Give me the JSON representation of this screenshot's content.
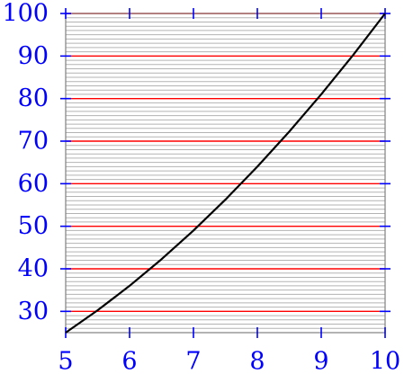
{
  "chart_data": {
    "type": "line",
    "title": "",
    "xlabel": "",
    "ylabel": "",
    "xlim": [
      5,
      10
    ],
    "ylim": [
      25,
      100
    ],
    "x_ticks": [
      5,
      6,
      7,
      8,
      9,
      10
    ],
    "y_ticks": [
      30,
      40,
      50,
      60,
      70,
      80,
      90,
      100
    ],
    "grid": {
      "major_y_step": 10,
      "minor_y_step": 1,
      "major_color": "#ff0000",
      "minor_color": "#b3b3b3"
    },
    "colors": {
      "tick_label": "#0000ff",
      "axis": "#808080",
      "curve": "#000000"
    },
    "series": [
      {
        "x": [
          5,
          5.5,
          6,
          6.5,
          7,
          7.5,
          8,
          8.5,
          9,
          9.5,
          10
        ],
        "y": [
          25,
          30.25,
          36,
          42.25,
          49,
          56.25,
          64,
          72.25,
          81,
          90.25,
          100
        ]
      }
    ]
  }
}
